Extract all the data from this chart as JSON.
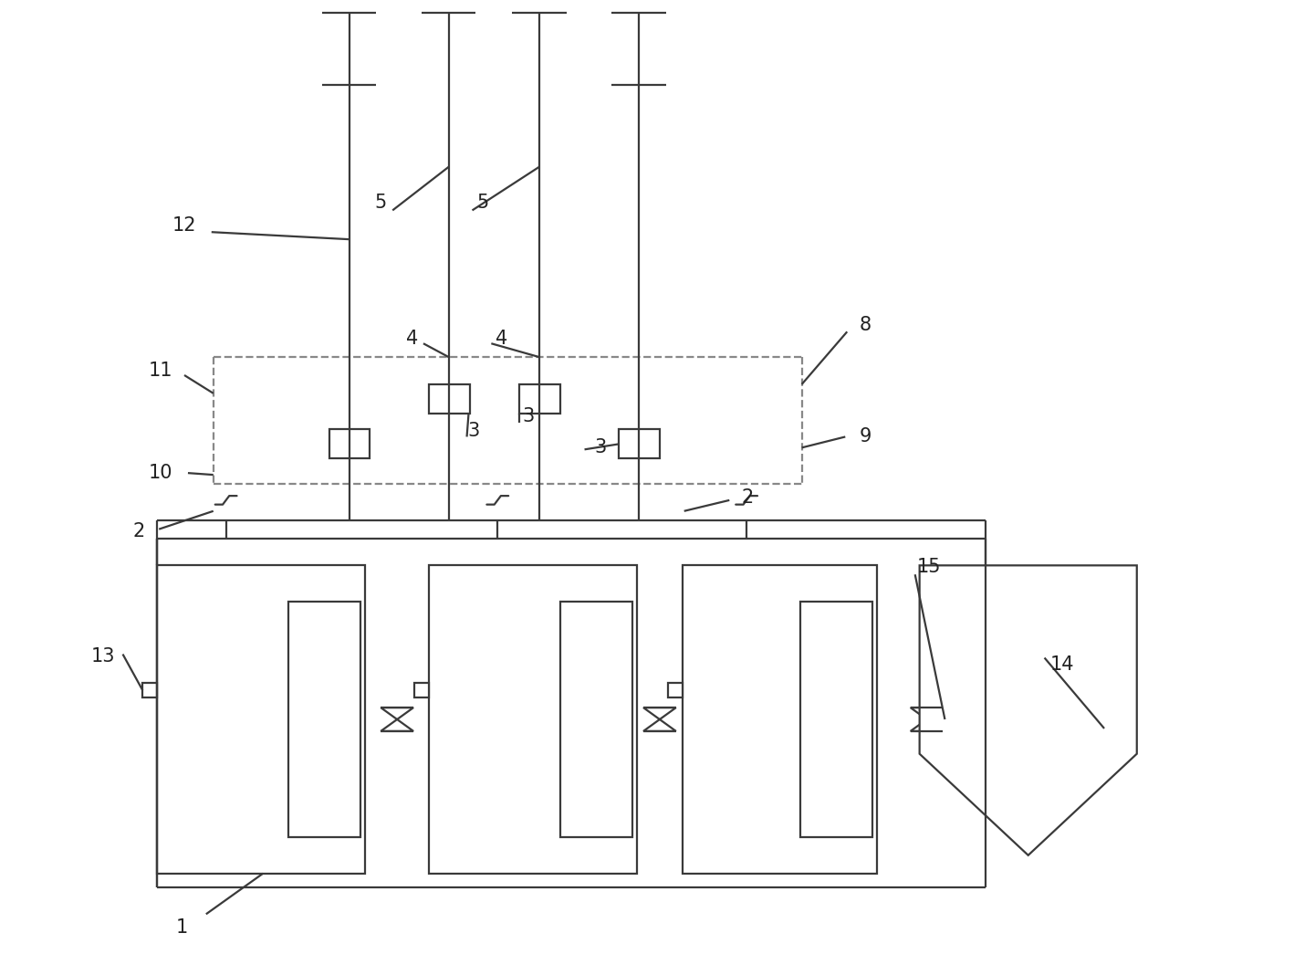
{
  "bg_color": "#ffffff",
  "line_color": "#3a3a3a",
  "dashed_color": "#888888",
  "line_width": 1.6,
  "fig_width": 14.18,
  "fig_height": 10.68
}
